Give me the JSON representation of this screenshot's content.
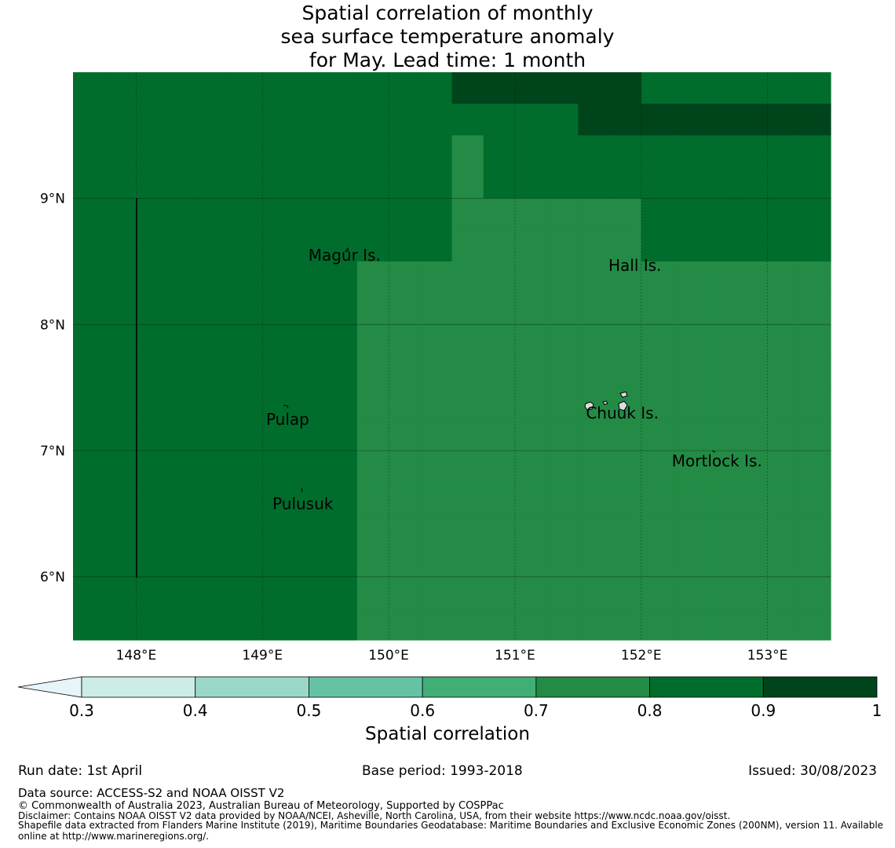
{
  "title": {
    "line1": "Spatial correlation of monthly",
    "line2": "sea surface temperature anomaly",
    "line3": "for May. Lead time: 1 month"
  },
  "map": {
    "lon_ticks": [
      "148°E",
      "149°E",
      "150°E",
      "151°E",
      "152°E",
      "153°E"
    ],
    "lat_ticks": [
      "9°N",
      "8°N",
      "7°N",
      "6°N"
    ],
    "lon_range": [
      147.5,
      153.5
    ],
    "lat_range": [
      5.5,
      10.0
    ],
    "grid_step_deg": 0.25,
    "bin_colors": [
      "#ccece6",
      "#99d8c9",
      "#66c2a4",
      "#41ae76",
      "#238b45",
      "#006d2c",
      "#00441b"
    ],
    "lowest_bin_color": "#e5f5f9",
    "value_grid_rows_north_to_south": [
      "555555555555666666555555",
      "555555555555555566666666",
      "555555555555455555555555",
      "555555555555455555555555",
      "555555555555444444555555",
      "555555555555444444555555",
      "555555555444444444444444",
      "555555555444444444444444",
      "555555555444444444444444",
      "555555555444444444444444",
      "555555555444444444444444",
      "555555555444444444444444",
      "555555555444444444444444",
      "555555555444444444444444",
      "555555555444444444444444",
      "555555555444444444444444",
      "555555555444444444444444",
      "555555555444444444444444"
    ],
    "places": [
      {
        "name": "Magur Is.",
        "lon": 149.65,
        "lat": 8.55
      },
      {
        "name": "Hall Is.",
        "lon": 151.95,
        "lat": 8.47
      },
      {
        "name": "Pulap",
        "lon": 149.2,
        "lat": 7.25
      },
      {
        "name": "Chuuk Is.",
        "lon": 151.85,
        "lat": 7.3
      },
      {
        "name": "Mortlock Is.",
        "lon": 152.6,
        "lat": 6.92
      },
      {
        "name": "Pulusuk",
        "lon": 149.32,
        "lat": 6.58
      }
    ]
  },
  "colorbar": {
    "ticks": [
      "0.3",
      "0.4",
      "0.5",
      "0.6",
      "0.7",
      "0.8",
      "0.9",
      "1"
    ],
    "label": "Spatial correlation"
  },
  "footer": {
    "run_date": "Run date: 1st April",
    "base_period": "Base period: 1993-2018",
    "issued": "Issued: 30/08/2023",
    "data_source": "Data source: ACCESS-S2 and NOAA OISST V2",
    "copyright": "© Commonwealth of Australia 2023, Australian Bureau of Meteorology, Supported by COSPPac",
    "disclaimer": "Disclaimer: Contains NOAA OISST V2 data provided by NOAA/NCEI, Asheville, North Carolina, USA, from their website https://www.ncdc.noaa.gov/oisst.",
    "shapefile_line1": "Shapefile data extracted from Flanders Marine Institute (2019), Maritime Boundaries Geodatabase: Maritime Boundaries and Exclusive Economic Zones (200NM), version 11. Available",
    "shapefile_line2": "online at http://www.marineregions.org/."
  }
}
